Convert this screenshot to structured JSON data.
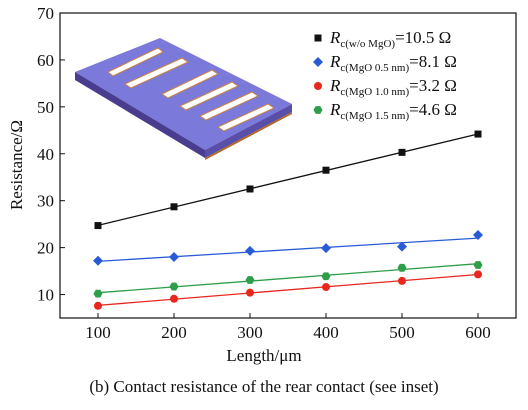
{
  "chart_data": {
    "type": "line",
    "x_label": "Length/μm",
    "y_label": "Resistance/Ω",
    "caption": "(b) Contact resistance of the rear contact (see inset)",
    "x": [
      100,
      200,
      300,
      400,
      500,
      600
    ],
    "xlim": [
      50,
      650
    ],
    "xticks": [
      100,
      200,
      300,
      400,
      500,
      600
    ],
    "ylim": [
      5,
      70
    ],
    "yticks": [
      10,
      20,
      30,
      40,
      50,
      60,
      70
    ],
    "fit_lines": true,
    "series": [
      {
        "name": "R",
        "name_sub": "c(w/o MgO)",
        "name_suffix": "=10.5 Ω",
        "color": "#111111",
        "marker": "square",
        "values": [
          24.7,
          28.7,
          32.5,
          36.5,
          40.3,
          44.2
        ]
      },
      {
        "name": "R",
        "name_sub": "c(MgO 0.5 nm)",
        "name_suffix": "=8.1 Ω",
        "color": "#2a5bd7",
        "marker": "diamond",
        "values": [
          17.2,
          18.0,
          19.3,
          19.9,
          20.2,
          22.7
        ]
      },
      {
        "name": "R",
        "name_sub": "c(MgO 1.0 nm)",
        "name_suffix": "=3.2 Ω",
        "color": "#e8271f",
        "marker": "circle",
        "values": [
          7.6,
          9.1,
          10.4,
          11.6,
          12.9,
          14.3
        ]
      },
      {
        "name": "R",
        "name_sub": "c(MgO 1.5 nm)",
        "name_suffix": "=4.6 Ω",
        "color": "#2e9e4a",
        "marker": "hexagon",
        "values": [
          10.2,
          11.7,
          13.1,
          13.9,
          15.7,
          16.3
        ]
      }
    ]
  }
}
